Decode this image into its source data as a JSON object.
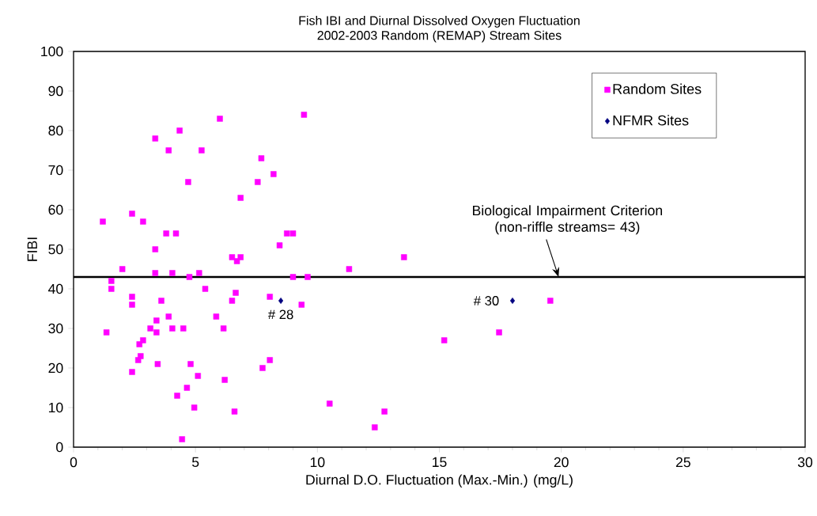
{
  "chart_data": {
    "type": "scatter",
    "title": "Fish IBI and Diurnal Dissolved Oxygen Fluctuation",
    "subtitle": "2002-2003 Random (REMAP) Stream Sites",
    "xlabel": "Diurnal D.O. Fluctuation (Max.-Min.) (mg/L)",
    "ylabel": "FIBI",
    "xlim": [
      0,
      30
    ],
    "ylim": [
      0,
      100
    ],
    "xticks": [
      0,
      5,
      10,
      15,
      20,
      25,
      30
    ],
    "yticks": [
      0,
      10,
      20,
      30,
      40,
      50,
      60,
      70,
      80,
      90,
      100
    ],
    "grid": false,
    "legend": "top right",
    "series": [
      {
        "name": "Random Sites",
        "color": "#ff00ff",
        "marker": "square",
        "x": [
          6.0,
          4.35,
          3.35,
          3.9,
          5.25,
          4.7,
          6.85,
          2.4,
          1.2,
          2.85,
          3.8,
          4.2,
          3.35,
          6.5,
          6.85,
          6.7,
          2.0,
          1.55,
          1.55,
          1.35,
          2.4,
          2.4,
          2.4,
          2.65,
          2.75,
          2.85,
          2.7,
          3.35,
          4.05,
          4.75,
          5.15,
          5.4,
          6.65,
          6.5,
          3.6,
          3.9,
          5.85,
          3.4,
          3.15,
          4.05,
          4.5,
          6.15,
          3.4,
          3.45,
          4.8,
          5.1,
          6.2,
          4.65,
          4.25,
          4.95,
          6.6,
          4.45,
          9.45,
          7.7,
          8.2,
          7.55,
          8.75,
          9.0,
          8.45,
          11.3,
          9.0,
          9.6,
          8.05,
          9.35,
          8.05,
          7.75,
          10.5,
          12.75,
          12.35,
          13.55,
          19.55,
          17.45,
          15.2
        ],
        "values": [
          83,
          80,
          78,
          75,
          75,
          67,
          63,
          59,
          57,
          57,
          54,
          54,
          50,
          48,
          48,
          47,
          45,
          42,
          40,
          29,
          38,
          36,
          19,
          22,
          23,
          27,
          26,
          44,
          44,
          43,
          44,
          40,
          39,
          37,
          37,
          33,
          33,
          32,
          30,
          30,
          30,
          30,
          29,
          21,
          21,
          18,
          17,
          15,
          13,
          10,
          9,
          2,
          84,
          73,
          69,
          67,
          54,
          54,
          51,
          45,
          43,
          43,
          38,
          36,
          22,
          20,
          11,
          9,
          5,
          48,
          37,
          29,
          27
        ]
      },
      {
        "name": "NFMR Sites",
        "color": "#000080",
        "marker": "diamond",
        "x": [
          8.5,
          18.0
        ],
        "values": [
          37,
          37
        ]
      }
    ],
    "ref_lines": [
      {
        "axis": "y",
        "value": 43,
        "label": "Biological Impairment Criterion (non-riffle streams= 43)",
        "color": "#000000"
      }
    ],
    "annotations": [
      {
        "text": "# 28",
        "x": 8.5,
        "y": 37
      },
      {
        "text": "# 30",
        "x": 18.0,
        "y": 37
      }
    ]
  }
}
